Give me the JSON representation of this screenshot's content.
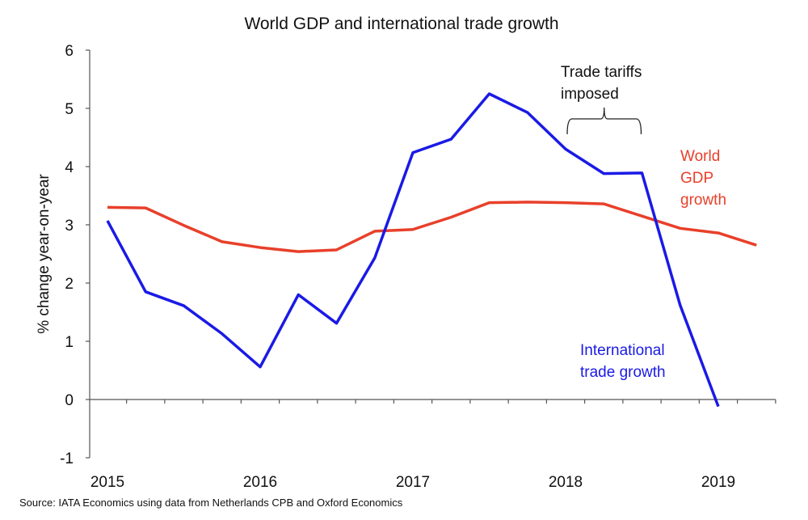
{
  "chart_data": {
    "type": "line",
    "title": "World GDP and international trade growth",
    "ylabel": "% change year-on-year",
    "xlabel": "",
    "ylim": [
      -1,
      6
    ],
    "yticks": [
      "-1",
      "0",
      "1",
      "2",
      "3",
      "4",
      "5",
      "6"
    ],
    "x": [
      "2015Q1",
      "2015Q2",
      "2015Q3",
      "2015Q4",
      "2016Q1",
      "2016Q2",
      "2016Q3",
      "2016Q4",
      "2017Q1",
      "2017Q2",
      "2017Q3",
      "2017Q4",
      "2018Q1",
      "2018Q2",
      "2018Q3",
      "2018Q4",
      "2019Q1",
      "2019Q2"
    ],
    "xtick_labels": [
      "2015",
      "2016",
      "2017",
      "2018",
      "2019"
    ],
    "grid": false,
    "series": [
      {
        "name": "International trade growth",
        "color": "#1a1ae6",
        "values": [
          3.07,
          1.85,
          1.61,
          1.13,
          0.56,
          1.8,
          1.31,
          2.43,
          4.24,
          4.47,
          5.25,
          4.93,
          4.3,
          3.88,
          3.89,
          1.62,
          -0.12,
          null
        ]
      },
      {
        "name": "World GDP growth",
        "color": "#e8402a",
        "values": [
          3.3,
          3.29,
          2.99,
          2.71,
          2.61,
          2.54,
          2.57,
          2.89,
          2.92,
          3.13,
          3.38,
          3.39,
          3.38,
          3.36,
          3.15,
          2.94,
          2.86,
          2.65
        ]
      }
    ],
    "series_labels": [
      {
        "lines": [
          "International",
          "trade growth"
        ],
        "color": "#1a1ae6"
      },
      {
        "lines": [
          "World",
          "GDP",
          "growth"
        ],
        "color": "#e8402a"
      }
    ],
    "annotation": {
      "lines": [
        "Trade tariffs",
        "imposed"
      ],
      "span": [
        "2018Q1",
        "2018Q3"
      ]
    },
    "source": "Source: IATA Economics using data from Netherlands CPB and Oxford Economics"
  }
}
